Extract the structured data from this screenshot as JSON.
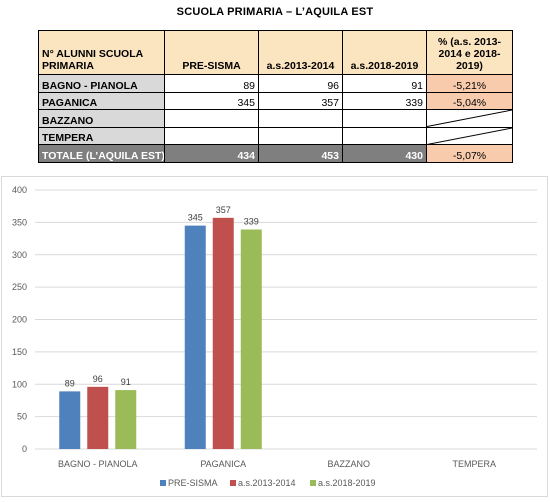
{
  "title": "SCUOLA PRIMARIA – L’AQUILA EST",
  "table": {
    "header": {
      "label": "N° ALUNNI SCUOLA PRIMARIA",
      "col1": "PRE-SISMA",
      "col2": "a.s.2013-2014",
      "col3": "a.s.2018-2019",
      "pct_bold": "%",
      "pct_rest": " (a.s. 2013-2014 e 2018-2019)"
    },
    "rows": [
      {
        "label": "BAGNO - PIANOLA",
        "v1": "89",
        "v2": "96",
        "v3": "91",
        "pct": "-5,21%"
      },
      {
        "label": "PAGANICA",
        "v1": "345",
        "v2": "357",
        "v3": "339",
        "pct": "-5,04%"
      },
      {
        "label": "BAZZANO",
        "v1": "",
        "v2": "",
        "v3": "",
        "pct": ""
      },
      {
        "label": "TEMPERA",
        "v1": "",
        "v2": "",
        "v3": "",
        "pct": ""
      }
    ],
    "total": {
      "label": "TOTALE (L’AQUILA EST)",
      "v1": "434",
      "v2": "453",
      "v3": "430",
      "pct": "-5,07%"
    }
  },
  "chart_data": {
    "type": "bar",
    "categories": [
      "BAGNO - PIANOLA",
      "PAGANICA",
      "BAZZANO",
      "TEMPERA"
    ],
    "series": [
      {
        "name": "PRE-SISMA",
        "color": "#4f81bd",
        "values": [
          89,
          345,
          null,
          null
        ]
      },
      {
        "name": "a.s.2013-2014",
        "color": "#c0504d",
        "values": [
          96,
          357,
          null,
          null
        ]
      },
      {
        "name": "a.s.2018-2019",
        "color": "#9bbb59",
        "values": [
          91,
          339,
          null,
          null
        ]
      }
    ],
    "ylim": [
      0,
      400
    ],
    "yticks": [
      0,
      50,
      100,
      150,
      200,
      250,
      300,
      350,
      400
    ],
    "grid": true,
    "legend_position": "bottom",
    "title": "",
    "xlabel": "",
    "ylabel": ""
  }
}
